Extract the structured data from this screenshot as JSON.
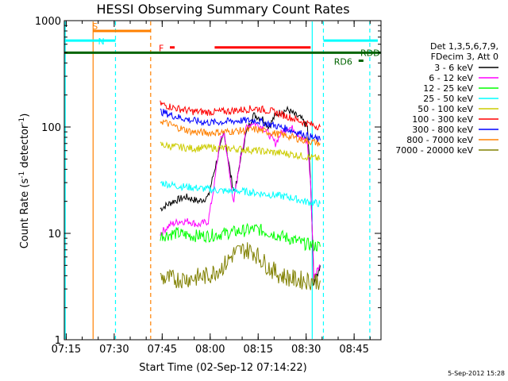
{
  "chart_data": {
    "type": "line",
    "title": "HESSI Observing Summary Count Rates",
    "xlabel": "Start Time (02-Sep-12 07:14:22)",
    "ylabel_main": "Count Rate (s",
    "ylabel_exp1": "-1",
    "ylabel_mid": " detector",
    "ylabel_exp2": "-1",
    "ylabel_end": ")",
    "y_scale": "log",
    "ylim": [
      1,
      1000
    ],
    "xlim_minutes": [
      0,
      99
    ],
    "x_ticks": [
      {
        "t": 0.6,
        "label": "07:15"
      },
      {
        "t": 15.6,
        "label": "07:30"
      },
      {
        "t": 30.6,
        "label": "07:45"
      },
      {
        "t": 45.6,
        "label": "08:00"
      },
      {
        "t": 60.6,
        "label": "08:15"
      },
      {
        "t": 75.6,
        "label": "08:30"
      },
      {
        "t": 90.6,
        "label": "08:45"
      }
    ],
    "y_ticks": [
      {
        "v": 1,
        "label": "1"
      },
      {
        "v": 10,
        "label": "10"
      },
      {
        "v": 100,
        "label": "100"
      },
      {
        "v": 1000,
        "label": "1000"
      }
    ],
    "legend_header": [
      "Det 1,3,5,6,7,9,",
      "FDecim 3, Att 0"
    ],
    "legend_placement": "right",
    "series": [
      {
        "name": "3 - 6 keV",
        "color": "#000000",
        "points": [
          [
            30,
            17
          ],
          [
            34,
            20
          ],
          [
            38,
            22
          ],
          [
            42,
            20
          ],
          [
            45,
            22
          ],
          [
            47,
            40
          ],
          [
            48.5,
            60
          ],
          [
            50,
            90
          ],
          [
            51,
            55
          ],
          [
            52,
            35
          ],
          [
            53,
            25
          ],
          [
            54,
            30
          ],
          [
            55,
            50
          ],
          [
            57,
            90
          ],
          [
            59,
            130
          ],
          [
            62,
            120
          ],
          [
            64,
            100
          ],
          [
            66,
            130
          ],
          [
            68,
            140
          ],
          [
            70,
            145
          ],
          [
            72,
            130
          ],
          [
            74,
            120
          ],
          [
            76,
            100
          ],
          [
            77,
            30
          ],
          [
            78,
            3.5
          ],
          [
            79,
            4
          ],
          [
            80,
            5
          ]
        ]
      },
      {
        "name": "6 - 12 keV",
        "color": "#ff00ff",
        "points": [
          [
            30,
            10
          ],
          [
            33,
            12
          ],
          [
            36,
            13
          ],
          [
            39,
            13
          ],
          [
            42,
            12
          ],
          [
            45,
            13
          ],
          [
            47,
            30
          ],
          [
            48.5,
            70
          ],
          [
            50,
            90
          ],
          [
            51,
            50
          ],
          [
            52,
            30
          ],
          [
            53,
            20
          ],
          [
            54,
            30
          ],
          [
            55,
            50
          ],
          [
            57,
            100
          ],
          [
            59,
            110
          ],
          [
            62,
            100
          ],
          [
            64,
            85
          ],
          [
            66,
            70
          ],
          [
            68,
            90
          ],
          [
            70,
            100
          ],
          [
            72,
            95
          ],
          [
            74,
            80
          ],
          [
            76,
            70
          ],
          [
            77,
            30
          ],
          [
            78,
            4
          ],
          [
            80,
            5
          ]
        ]
      },
      {
        "name": "12 - 25 keV",
        "color": "#00ff00",
        "points": [
          [
            30,
            9.5
          ],
          [
            35,
            10
          ],
          [
            40,
            9.5
          ],
          [
            45,
            9.5
          ],
          [
            50,
            10
          ],
          [
            55,
            10.5
          ],
          [
            60,
            11
          ],
          [
            65,
            10
          ],
          [
            70,
            9
          ],
          [
            75,
            8
          ],
          [
            80,
            7.5
          ]
        ]
      },
      {
        "name": "25 - 50 keV",
        "color": "#00ffff",
        "points": [
          [
            30,
            30
          ],
          [
            35,
            28
          ],
          [
            40,
            27
          ],
          [
            45,
            26
          ],
          [
            50,
            25
          ],
          [
            55,
            25
          ],
          [
            60,
            24
          ],
          [
            65,
            23
          ],
          [
            70,
            22
          ],
          [
            75,
            20
          ],
          [
            80,
            19
          ]
        ]
      },
      {
        "name": "50 - 100 keV",
        "color": "#cccc00",
        "points": [
          [
            30,
            68
          ],
          [
            35,
            65
          ],
          [
            40,
            63
          ],
          [
            45,
            64
          ],
          [
            50,
            63
          ],
          [
            55,
            62
          ],
          [
            60,
            60
          ],
          [
            65,
            58
          ],
          [
            70,
            56
          ],
          [
            75,
            53
          ],
          [
            80,
            50
          ]
        ]
      },
      {
        "name": "100 - 300 keV",
        "color": "#ff0000",
        "points": [
          [
            30,
            165
          ],
          [
            35,
            150
          ],
          [
            40,
            140
          ],
          [
            45,
            138
          ],
          [
            50,
            140
          ],
          [
            55,
            145
          ],
          [
            60,
            150
          ],
          [
            65,
            140
          ],
          [
            70,
            125
          ],
          [
            75,
            110
          ],
          [
            80,
            100
          ]
        ]
      },
      {
        "name": "300 - 800 keV",
        "color": "#0000ff",
        "points": [
          [
            30,
            140
          ],
          [
            35,
            125
          ],
          [
            40,
            115
          ],
          [
            45,
            110
          ],
          [
            50,
            112
          ],
          [
            55,
            115
          ],
          [
            60,
            115
          ],
          [
            65,
            105
          ],
          [
            70,
            95
          ],
          [
            75,
            85
          ],
          [
            80,
            75
          ]
        ]
      },
      {
        "name": "800 - 7000 keV",
        "color": "#ff8000",
        "points": [
          [
            30,
            115
          ],
          [
            35,
            100
          ],
          [
            40,
            90
          ],
          [
            45,
            88
          ],
          [
            50,
            90
          ],
          [
            55,
            92
          ],
          [
            60,
            95
          ],
          [
            65,
            88
          ],
          [
            70,
            82
          ],
          [
            75,
            75
          ],
          [
            80,
            70
          ]
        ]
      },
      {
        "name": "7000 - 20000 keV",
        "color": "#808000",
        "points": [
          [
            30,
            3.8
          ],
          [
            35,
            3.7
          ],
          [
            40,
            3.8
          ],
          [
            45,
            4
          ],
          [
            50,
            5
          ],
          [
            53,
            6.5
          ],
          [
            56,
            7
          ],
          [
            59,
            6.8
          ],
          [
            62,
            5.5
          ],
          [
            65,
            4.5
          ],
          [
            68,
            4
          ],
          [
            72,
            3.7
          ],
          [
            76,
            3.6
          ],
          [
            80,
            3.6
          ]
        ]
      }
    ],
    "bars": [
      {
        "label": "S",
        "color": "#ff8000",
        "t0": 9,
        "t1": 27,
        "v": 800
      },
      {
        "label": "N",
        "color": "#00ffff",
        "t0": 0,
        "t1": 16,
        "v": 650
      },
      {
        "label": "",
        "color": "#00ffff",
        "t0": 81,
        "t1": 98,
        "v": 650
      },
      {
        "label": "F",
        "color": "#ff0000",
        "t0": 33,
        "t1": 34.5,
        "v": 560
      },
      {
        "label": "",
        "color": "#ff0000",
        "t0": 47,
        "t1": 77,
        "v": 560
      },
      {
        "label": "RDD",
        "color": "#006400",
        "t0": 0,
        "t1": 99,
        "v": 500
      },
      {
        "label": "RD6",
        "color": "#006400",
        "t0": 92,
        "t1": 93.5,
        "v": 420
      }
    ],
    "vlines": [
      {
        "t": 0.3,
        "color": "#00ffff",
        "style": "solid"
      },
      {
        "t": 9,
        "color": "#ff8000",
        "style": "solid"
      },
      {
        "t": 16,
        "color": "#00ffff",
        "style": "dashed"
      },
      {
        "t": 27,
        "color": "#ff8000",
        "style": "dashed"
      },
      {
        "t": 77.5,
        "color": "#00ffff",
        "style": "solid"
      },
      {
        "t": 81,
        "color": "#00ffff",
        "style": "dashed"
      },
      {
        "t": 95.5,
        "color": "#00ffff",
        "style": "dashed"
      }
    ],
    "timestamp": "5-Sep-2012 15:28"
  }
}
